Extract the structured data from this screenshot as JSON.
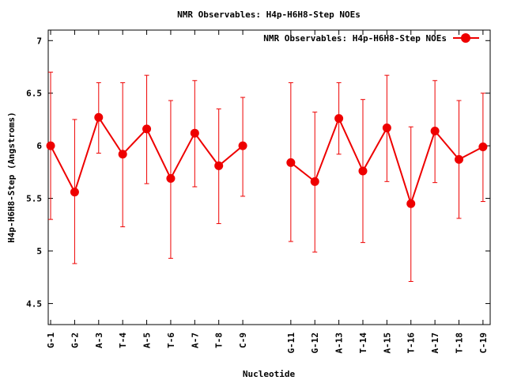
{
  "chart_data": {
    "type": "line",
    "title": "NMR Observables: H4p-H6H8-Step NOEs",
    "xlabel": "Nucleotide",
    "ylabel": "H4p-H6H8-Step (Angstroms)",
    "ylim": [
      4.3,
      7.1
    ],
    "yticks": [
      "4.5",
      "5",
      "5.5",
      "6",
      "6.5",
      "7"
    ],
    "legend_position": "top-right",
    "grid": false,
    "series": [
      {
        "name": "NMR Observables: H4p-H6H8-Step NOEs",
        "color": "#ee0000",
        "points": [
          {
            "label": "G-1",
            "x": 1,
            "y": 6.0,
            "ymin": 5.3,
            "ymax": 6.7
          },
          {
            "label": "G-2",
            "x": 2,
            "y": 5.56,
            "ymin": 4.88,
            "ymax": 6.25
          },
          {
            "label": "A-3",
            "x": 3,
            "y": 6.27,
            "ymin": 5.93,
            "ymax": 6.6
          },
          {
            "label": "T-4",
            "x": 4,
            "y": 5.92,
            "ymin": 5.23,
            "ymax": 6.6
          },
          {
            "label": "A-5",
            "x": 5,
            "y": 6.16,
            "ymin": 5.64,
            "ymax": 6.67
          },
          {
            "label": "T-6",
            "x": 6,
            "y": 5.69,
            "ymin": 4.93,
            "ymax": 6.43
          },
          {
            "label": "A-7",
            "x": 7,
            "y": 6.12,
            "ymin": 5.61,
            "ymax": 6.62
          },
          {
            "label": "T-8",
            "x": 8,
            "y": 5.81,
            "ymin": 5.26,
            "ymax": 6.35
          },
          {
            "label": "C-9",
            "x": 9,
            "y": 6.0,
            "ymin": 5.52,
            "ymax": 6.46
          },
          {
            "label": "G-11",
            "x": 11,
            "y": 5.84,
            "ymin": 5.09,
            "ymax": 6.6
          },
          {
            "label": "G-12",
            "x": 12,
            "y": 5.66,
            "ymin": 4.99,
            "ymax": 6.32
          },
          {
            "label": "A-13",
            "x": 13,
            "y": 6.26,
            "ymin": 5.92,
            "ymax": 6.6
          },
          {
            "label": "T-14",
            "x": 14,
            "y": 5.76,
            "ymin": 5.08,
            "ymax": 6.44
          },
          {
            "label": "A-15",
            "x": 15,
            "y": 6.17,
            "ymin": 5.66,
            "ymax": 6.67
          },
          {
            "label": "T-16",
            "x": 16,
            "y": 5.45,
            "ymin": 4.71,
            "ymax": 6.18
          },
          {
            "label": "A-17",
            "x": 17,
            "y": 6.14,
            "ymin": 5.65,
            "ymax": 6.62
          },
          {
            "label": "T-18",
            "x": 18,
            "y": 5.87,
            "ymin": 5.31,
            "ymax": 6.43
          },
          {
            "label": "C-19",
            "x": 19,
            "y": 5.99,
            "ymin": 5.47,
            "ymax": 6.5
          }
        ]
      }
    ],
    "segments": [
      [
        1,
        9
      ],
      [
        11,
        19
      ]
    ],
    "xlim": [
      0.9,
      19.3
    ]
  }
}
